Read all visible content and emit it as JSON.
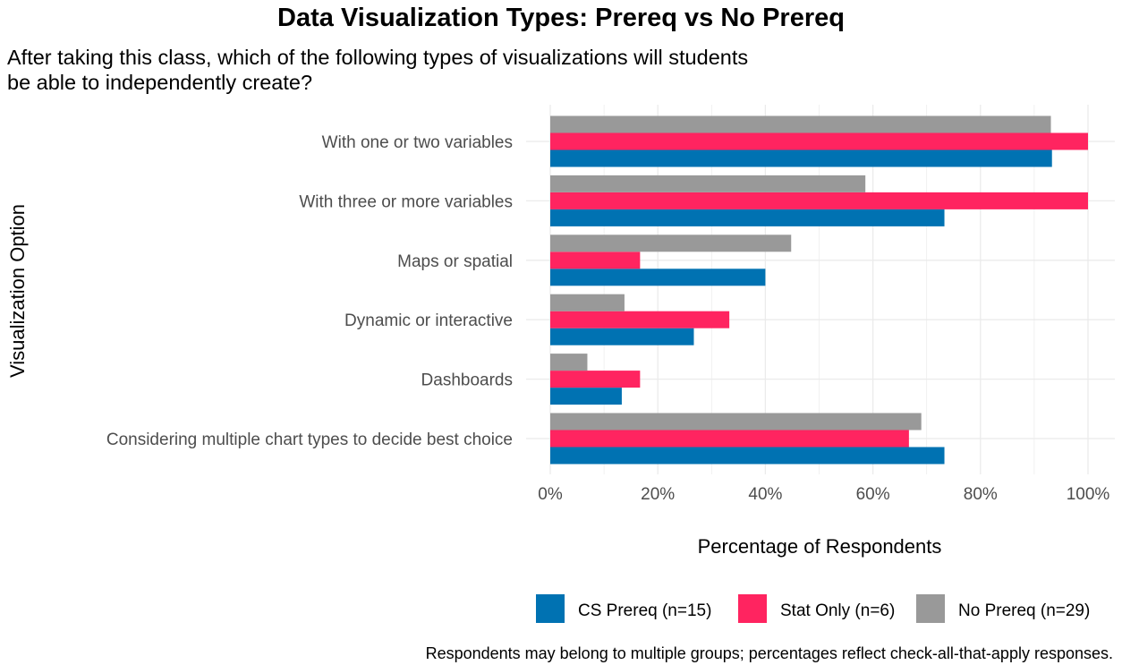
{
  "chart_data": {
    "type": "bar",
    "orientation": "horizontal",
    "title": "Data Visualization Types: Prereq vs No Prereq",
    "subtitle": "After taking this class, which of the following types of visualizations will students be able to independently create?",
    "xlabel": "Percentage of Respondents",
    "ylabel": "Visualization Option",
    "caption": "Respondents may belong to multiple groups; percentages reflect check-all-that-apply responses.",
    "xlim": [
      0,
      100
    ],
    "x_ticks": [
      "0%",
      "20%",
      "40%",
      "60%",
      "80%",
      "100%"
    ],
    "grid": true,
    "legend_position": "bottom-right",
    "categories": [
      "With one or two variables",
      "With three or more variables",
      "Maps or spatial",
      "Dynamic or interactive",
      "Dashboards",
      "Considering multiple chart types to decide best choice"
    ],
    "series": [
      {
        "name": "CS Prereq (n=15)",
        "color": "#0072B2",
        "values": [
          93.3,
          73.3,
          40.0,
          26.7,
          13.3,
          73.3
        ]
      },
      {
        "name": "Stat Only (n=6)",
        "color": "#FF2460",
        "values": [
          100,
          100,
          16.7,
          33.3,
          16.7,
          66.7
        ]
      },
      {
        "name": "No Prereq (n=29)",
        "color": "#999999",
        "values": [
          93.1,
          58.6,
          44.8,
          13.8,
          6.9,
          69.0
        ]
      }
    ]
  }
}
